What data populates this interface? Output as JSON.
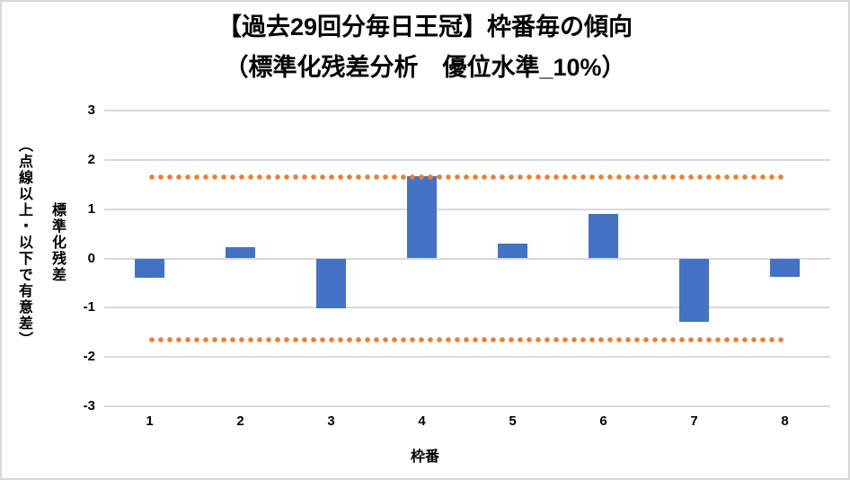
{
  "chart_data": {
    "type": "bar",
    "title": "【過去29回分毎日王冠】枠番毎の傾向",
    "subtitle": "（標準化残差分析　優位水準_10%）",
    "categories": [
      "1",
      "2",
      "3",
      "4",
      "5",
      "6",
      "7",
      "8"
    ],
    "series": [
      {
        "name": "標準化残差",
        "values": [
          -0.4,
          0.23,
          -1.02,
          1.66,
          0.3,
          0.91,
          -1.28,
          -0.38
        ]
      }
    ],
    "significance_lines": [
      1.645,
      -1.645
    ],
    "xlabel": "枠番",
    "ylabel_primary": "標準化残差",
    "ylabel_secondary": "（点線以上・以下で有意差）",
    "ylim": [
      -3,
      3
    ],
    "yticks": [
      3,
      2,
      1,
      0,
      -1,
      -2,
      -3
    ],
    "grid": true,
    "legend": "none",
    "colors": {
      "bar": "#4472C4",
      "significance_line": "#ED7D31",
      "gridline": "#D9D9D9",
      "border": "#D9D9D9",
      "text": "#000000"
    }
  }
}
